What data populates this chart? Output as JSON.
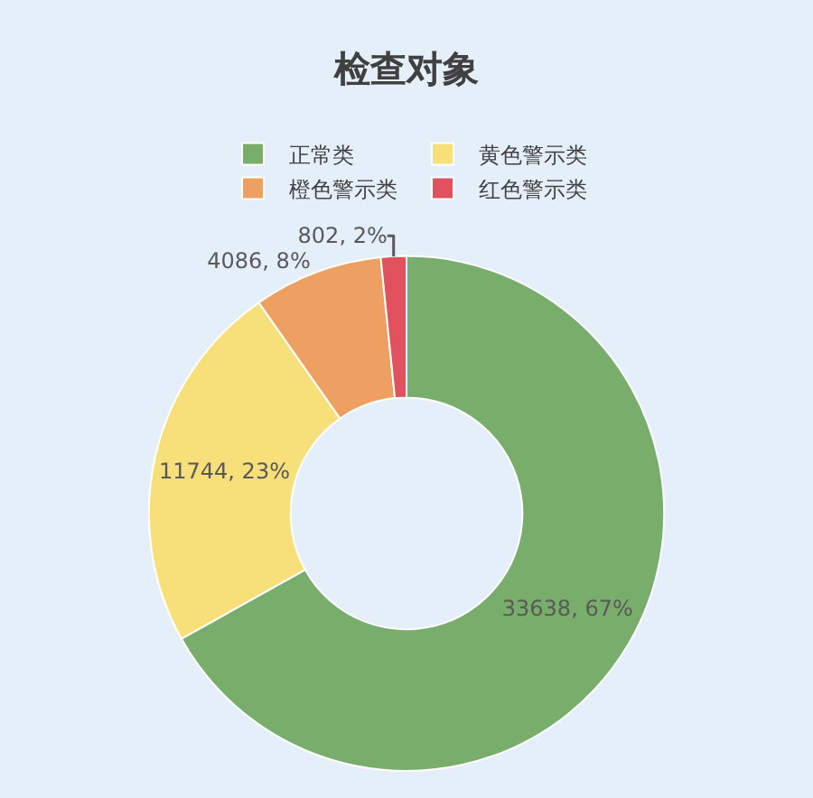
{
  "chart_data": {
    "type": "donut",
    "title": "检查对象",
    "categories": [
      "正常类",
      "黄色警示类",
      "橙色警示类",
      "红色警示类"
    ],
    "values": [
      33638,
      11744,
      4086,
      802
    ],
    "colors": [
      "#78ad6c",
      "#f7e07a",
      "#eea062",
      "#e0525e"
    ],
    "value_labels": [
      "33638, 67%",
      "11744, 23%",
      "4086, 8%",
      "802, 2%"
    ],
    "legend": "top"
  }
}
